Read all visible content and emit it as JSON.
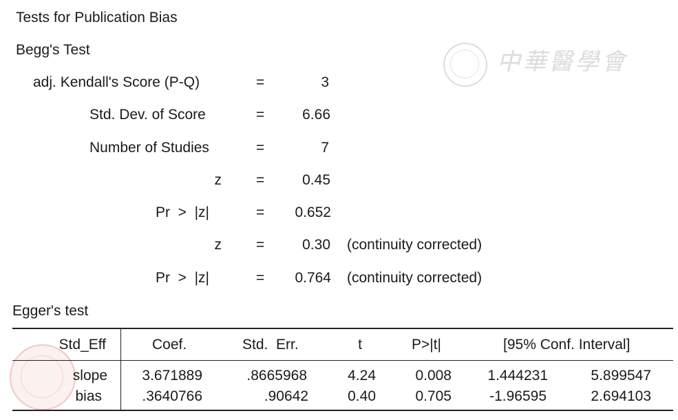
{
  "title": "Tests for Publication Bias",
  "begg": {
    "heading": "Begg's Test",
    "rows": [
      {
        "label": "adj. Kendall's Score (P-Q)",
        "eq": "=",
        "value": "3",
        "note": ""
      },
      {
        "label": "Std. Dev. of Score",
        "eq": "=",
        "value": "6.66",
        "note": ""
      },
      {
        "label": "Number of Studies",
        "eq": "=",
        "value": "7",
        "note": ""
      },
      {
        "label": "z",
        "eq": "=",
        "value": "0.45",
        "note": ""
      },
      {
        "label": "Pr  >  |z|",
        "eq": "=",
        "value": "0.652",
        "note": ""
      },
      {
        "label": "z",
        "eq": "=",
        "value": "0.30",
        "note": "(continuity corrected)"
      },
      {
        "label": "Pr  >  |z|",
        "eq": "=",
        "value": "0.764",
        "note": "(continuity corrected)"
      }
    ]
  },
  "egger": {
    "heading": "Egger's test",
    "columns": [
      "Std_Eff",
      "Coef.",
      "Std.  Err.",
      "t",
      "P>|t|",
      "[95% Conf. Interval]"
    ],
    "rows": [
      {
        "name": "slope",
        "coef": "3.671889",
        "se": ".8665968",
        "t": "4.24",
        "p": "0.008",
        "lo": "1.444231",
        "hi": "5.899547"
      },
      {
        "name": "bias",
        "coef": ".3640766",
        "se": ".90642",
        "t": "0.40",
        "p": "0.705",
        "lo": "-1.96595",
        "hi": "2.694103"
      }
    ]
  },
  "watermark": {
    "text": "中華醫學會",
    "seal_color_top": "#d8d8d8",
    "seal_color_bottom": "#f0c9c4"
  }
}
